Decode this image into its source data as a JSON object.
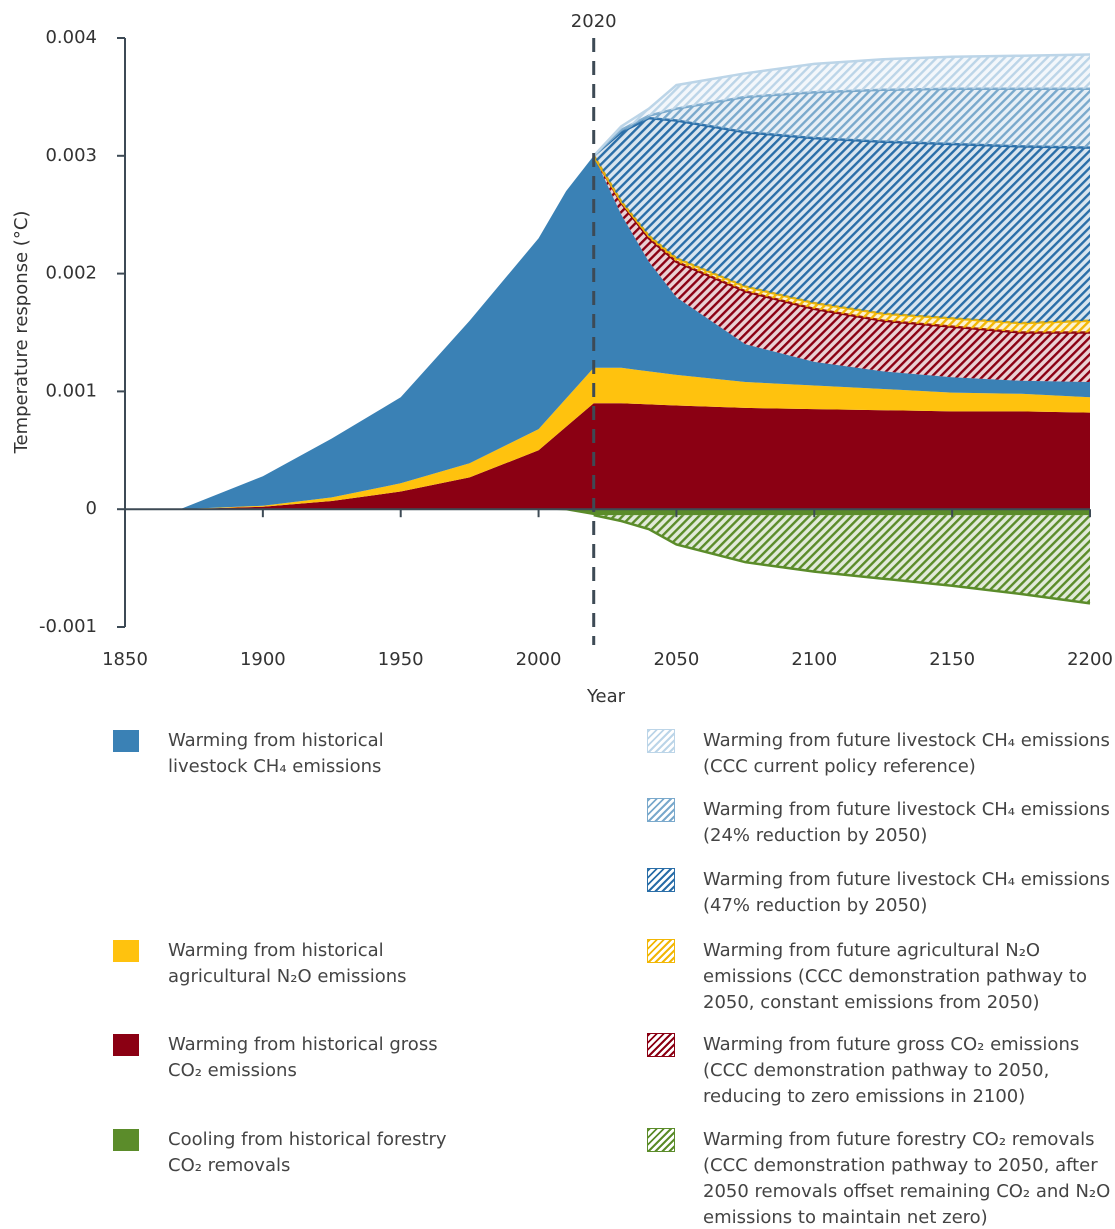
{
  "chart_data": {
    "type": "area",
    "x_label": "Year",
    "y_label": "Temperature response (°C)",
    "vline": 2020,
    "xlim": [
      1850,
      2200
    ],
    "xticks": [
      1850,
      1900,
      1950,
      2000,
      2050,
      2100,
      2150,
      2200
    ],
    "ylim": [
      -0.001,
      0.004
    ],
    "yticks": [
      -0.001,
      0,
      0.001,
      0.002,
      0.003,
      0.004
    ],
    "stacked": true,
    "x": [
      1850,
      1870,
      1900,
      1925,
      1950,
      1975,
      2000,
      2010,
      2020,
      2030,
      2040,
      2050,
      2075,
      2100,
      2125,
      2150,
      2175,
      2200
    ],
    "series": [
      {
        "name": "Warming from historical gross CO₂ emissions",
        "color": "#8b0013",
        "hatched": false,
        "values": [
          0,
          0,
          2e-05,
          7e-05,
          0.00015,
          0.00027,
          0.0005,
          0.0007,
          0.0009,
          0.0009,
          0.00089,
          0.00088,
          0.00086,
          0.00085,
          0.00084,
          0.00083,
          0.00083,
          0.00082
        ]
      },
      {
        "name": "Warming from historical agricultural N₂O emissions",
        "color": "#ffc20e",
        "hatched": false,
        "values": [
          0,
          0,
          1e-05,
          3e-05,
          7e-05,
          0.00012,
          0.00018,
          0.00024,
          0.0003,
          0.0003,
          0.00028,
          0.00026,
          0.00022,
          0.0002,
          0.00018,
          0.00016,
          0.00015,
          0.00013
        ]
      },
      {
        "name": "Warming from historical livestock CH₄ emissions",
        "color": "#3a81b5",
        "hatched": false,
        "values": [
          0,
          0,
          0.00025,
          0.0005,
          0.00073,
          0.00121,
          0.00162,
          0.00176,
          0.0018,
          0.0013,
          0.00093,
          0.00066,
          0.00032,
          0.0002,
          0.00015,
          0.00013,
          0.00011,
          0.00013
        ]
      },
      {
        "name": "Warming from future gross CO₂ emissions (CCC demonstration pathway to 2050, reducing to zero emissions in 2100)",
        "color": "#8b0013",
        "hatched": true,
        "values": [
          null,
          null,
          null,
          null,
          null,
          null,
          null,
          null,
          0,
          0.0001,
          0.0002,
          0.0003,
          0.00045,
          0.00045,
          0.00043,
          0.00043,
          0.00041,
          0.00042
        ]
      },
      {
        "name": "Warming from future agricultural N₂O emissions (CCC demonstration pathway to 2050, constant emissions from 2050)",
        "color": "#f2b705",
        "hatched": true,
        "values": [
          null,
          null,
          null,
          null,
          null,
          null,
          null,
          null,
          0,
          1e-05,
          2e-05,
          3e-05,
          4e-05,
          5e-05,
          6e-05,
          7e-05,
          8e-05,
          0.0001
        ]
      },
      {
        "name": "Warming from future livestock CH₄ emissions (47% reduction by 2050)",
        "color": "#2a6ea8",
        "hatched": true,
        "values": [
          null,
          null,
          null,
          null,
          null,
          null,
          null,
          null,
          0,
          0.00059,
          0.001,
          0.00117,
          0.00131,
          0.0014,
          0.00146,
          0.00148,
          0.0015,
          0.00147
        ]
      },
      {
        "name": "Warming from future livestock CH₄ emissions (24% reduction by 2050)",
        "color": "#7aa9cc",
        "hatched": true,
        "values": [
          null,
          null,
          null,
          null,
          null,
          null,
          null,
          null,
          0,
          2e-05,
          2e-05,
          0.0001,
          0.0003,
          0.00039,
          0.00044,
          0.00047,
          0.00049,
          0.0005
        ]
      },
      {
        "name": "Warming from future livestock CH₄ emissions (CCC current policy reference)",
        "color": "#bcd5e8",
        "hatched": true,
        "values": [
          null,
          null,
          null,
          null,
          null,
          null,
          null,
          null,
          0,
          3e-05,
          6e-05,
          0.0002,
          0.0002,
          0.00024,
          0.00026,
          0.00027,
          0.00028,
          0.00029
        ]
      },
      {
        "name": "Cooling from historical forestry CO₂ removals",
        "color": "#5b8c2a",
        "hatched": false,
        "values": [
          0,
          0,
          0,
          0,
          0,
          0,
          0,
          -1e-05,
          -5e-05,
          -5e-05,
          -5e-05,
          -5e-05,
          -5e-05,
          -5e-05,
          -5e-05,
          -5e-05,
          -5e-05,
          -5e-05
        ]
      },
      {
        "name": "Warming from future forestry CO₂ removals (CCC demonstration pathway to 2050, after 2050 removals offset remaining CO₂ and N₂O emissions to maintain net zero)",
        "color": "#5b8c2a",
        "hatched": true,
        "values": [
          null,
          null,
          null,
          null,
          null,
          null,
          null,
          null,
          0,
          -5e-05,
          -0.00012,
          -0.00025,
          -0.0004,
          -0.00048,
          -0.00054,
          -0.0006,
          -0.00067,
          -0.00075
        ]
      }
    ]
  }
}
